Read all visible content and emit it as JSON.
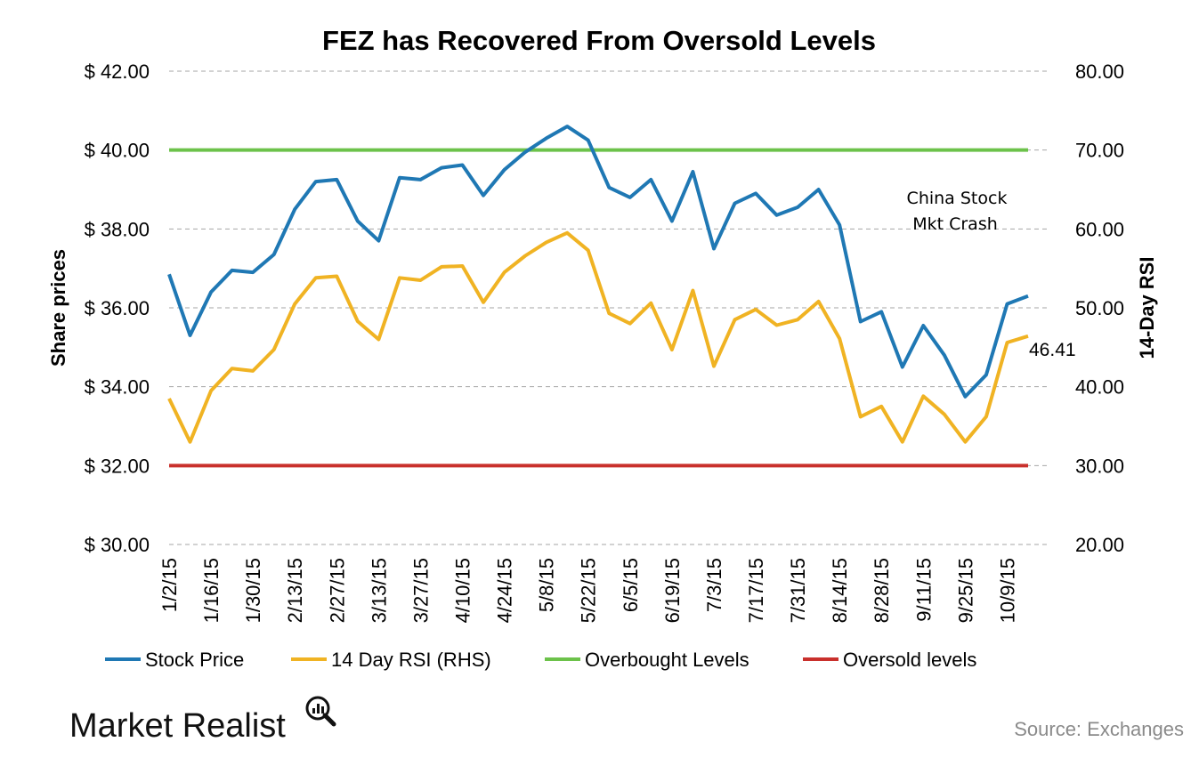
{
  "brand": {
    "name": "Market Realist"
  },
  "source": "Source: Exchanges",
  "chart_data": {
    "type": "line",
    "title": "FEZ has Recovered From Oversold Levels",
    "ylabel": "Share prices",
    "y2label": "14-Day RSI",
    "ylim": [
      30,
      42
    ],
    "y2lim": [
      20,
      80
    ],
    "yticks": [
      "$ 30.00",
      "$ 32.00",
      "$ 34.00",
      "$ 36.00",
      "$ 38.00",
      "$ 40.00",
      "$ 42.00"
    ],
    "y2ticks": [
      "20.00",
      "30.00",
      "40.00",
      "50.00",
      "60.00",
      "70.00",
      "80.00"
    ],
    "xtick_labels": [
      "1/2/15",
      "1/16/15",
      "1/30/15",
      "2/13/15",
      "2/27/15",
      "3/13/15",
      "3/27/15",
      "4/10/15",
      "4/24/15",
      "5/8/15",
      "5/22/15",
      "6/5/15",
      "6/19/15",
      "7/3/15",
      "7/17/15",
      "7/31/15",
      "8/14/15",
      "8/28/15",
      "9/11/15",
      "9/25/15",
      "10/9/15"
    ],
    "grid": true,
    "legend_position": "bottom",
    "colors": {
      "stock": "#1f78b4",
      "rsi": "#f0b323",
      "overbought": "#6cc24a",
      "oversold": "#c9302c",
      "grid": "#a6a6a6"
    },
    "series": [
      {
        "name": "Stock Price",
        "axis": "left",
        "values": [
          36.85,
          35.3,
          36.4,
          36.95,
          36.9,
          37.35,
          38.5,
          39.2,
          39.25,
          38.2,
          37.7,
          39.3,
          39.25,
          39.55,
          39.62,
          38.85,
          39.5,
          39.95,
          40.3,
          40.6,
          40.25,
          39.05,
          38.8,
          39.25,
          38.2,
          39.45,
          37.5,
          38.65,
          38.9,
          38.35,
          38.55,
          39.0,
          38.1,
          35.65,
          35.9,
          34.5,
          35.55,
          34.8,
          33.75,
          34.3,
          36.1,
          36.3
        ]
      },
      {
        "name": "14 Day RSI (RHS)",
        "axis": "right",
        "values": [
          38.5,
          33.0,
          39.5,
          42.3,
          42.0,
          44.7,
          50.5,
          53.8,
          54.0,
          48.3,
          46.0,
          53.8,
          53.5,
          55.2,
          55.3,
          50.7,
          54.5,
          56.6,
          58.3,
          59.5,
          57.3,
          49.3,
          48.0,
          50.6,
          44.7,
          52.2,
          42.6,
          48.5,
          49.8,
          47.8,
          48.5,
          50.8,
          46.1,
          36.2,
          37.5,
          33.0,
          38.8,
          36.5,
          33.0,
          36.2,
          45.6,
          46.41
        ]
      },
      {
        "name": "Overbought Levels",
        "axis": "right",
        "values": [
          70,
          70
        ]
      },
      {
        "name": "Oversold levels",
        "axis": "right",
        "values": [
          30,
          30
        ]
      }
    ],
    "annotations": [
      {
        "text_lines": [
          "China Stock",
          "Mkt Crash"
        ],
        "x_index": 32
      }
    ],
    "data_labels": [
      {
        "series": "14 Day RSI (RHS)",
        "text": "46.41"
      }
    ]
  }
}
